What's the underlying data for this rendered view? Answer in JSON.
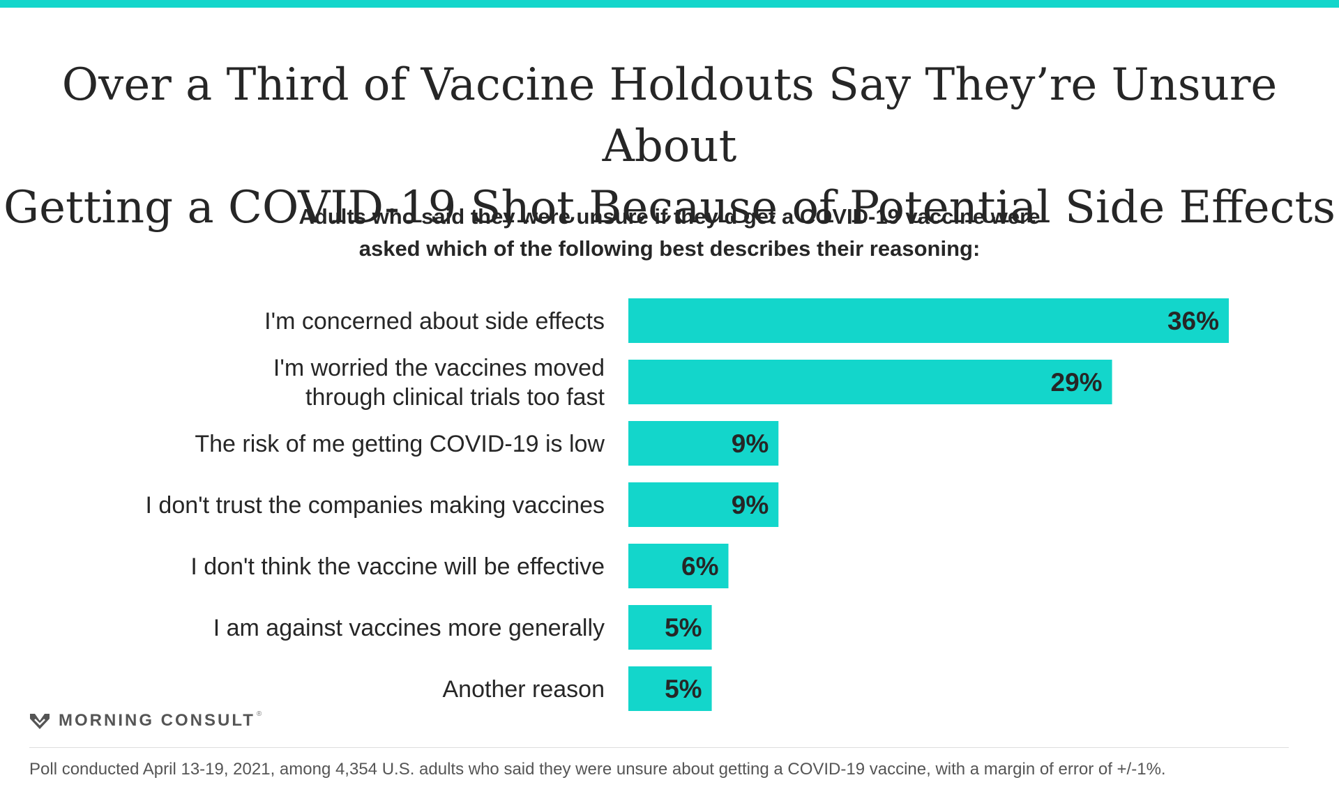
{
  "header": {
    "title_line1": "Over a Third of Vaccine Holdouts Say They’re Unsure About",
    "title_line2": "Getting a COVID-19 Shot Because of Potential Side Effects",
    "subtitle_line1": "Adults who said they were unsure if they’d get a COVID-19 vaccine were",
    "subtitle_line2": "asked which of the following best describes their reasoning:"
  },
  "colors": {
    "accent": "#13d6cb",
    "text": "#262626",
    "muted": "#555555"
  },
  "chart_data": {
    "type": "bar",
    "orientation": "horizontal",
    "categories": [
      [
        "I'm concerned about side effects"
      ],
      [
        "I'm worried the vaccines moved",
        "through clinical trials too fast"
      ],
      [
        "The risk of me getting COVID-19 is low"
      ],
      [
        "I don't trust the companies making vaccines"
      ],
      [
        "I don't think the vaccine will be effective"
      ],
      [
        "I am against vaccines more generally"
      ],
      [
        "Another reason"
      ]
    ],
    "values": [
      36,
      29,
      9,
      9,
      6,
      5,
      5
    ],
    "value_labels": [
      "36%",
      "29%",
      "9%",
      "9%",
      "6%",
      "5%",
      "5%"
    ],
    "xlim": [
      0,
      40
    ],
    "grid": false,
    "legend": "none"
  },
  "branding": {
    "logo_text": "MORNING CONSULT",
    "logo_mark": "registered-mark",
    "logo_icon": "morning-consult-m-icon"
  },
  "footnote": "Poll conducted April 13-19, 2021, among 4,354 U.S. adults who said they were unsure about getting a COVID-19 vaccine, with a margin of error of +/-1%."
}
